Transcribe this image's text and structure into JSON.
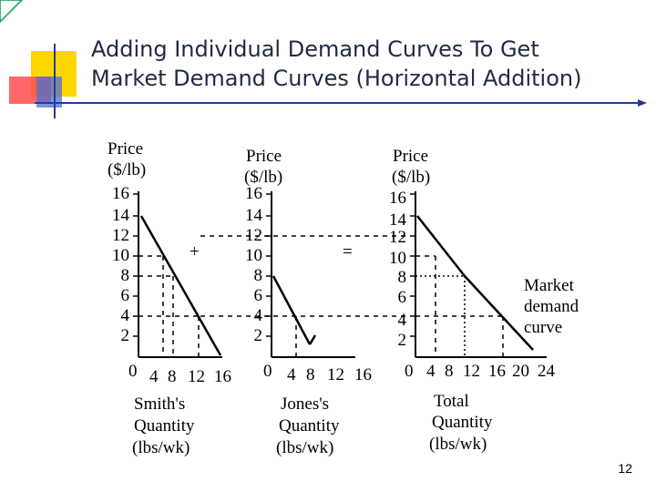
{
  "slide": {
    "title_line1": "Adding Individual Demand Curves To Get",
    "title_line2": "Market Demand Curves (Horizontal Addition)",
    "page_number": "12",
    "colors": {
      "accent_yellow": "#ffd700",
      "accent_red": "#ff3b3b",
      "accent_blue": "#1f3c9e",
      "corner_green": "#00a050"
    }
  },
  "operators": {
    "plus": "+",
    "equals": "="
  },
  "charts": [
    {
      "price_label_1": "Price",
      "price_label_2": "($/lb)",
      "y_ticks": [
        "16",
        "14",
        "12",
        "10",
        "8",
        "6",
        "4",
        "2"
      ],
      "x_ticks": [
        "0",
        "4",
        "8",
        "12",
        "16"
      ],
      "x_label_1": "Smith's",
      "x_label_2": "Quantity",
      "x_label_3": "(lbs/wk)"
    },
    {
      "price_label_1": "Price",
      "price_label_2": "($/lb)",
      "y_ticks": [
        "16",
        "14",
        "12",
        "10",
        "8",
        "6",
        "4",
        "2"
      ],
      "x_ticks": [
        "0",
        "4",
        "8",
        "12",
        "16"
      ],
      "x_label_1": "Jones's",
      "x_label_2": "Quantity",
      "x_label_3": "(lbs/wk)"
    },
    {
      "price_label_1": "Price",
      "price_label_2": "($/lb)",
      "y_ticks": [
        "16",
        "14",
        "12",
        "10",
        "8",
        "6",
        "4",
        "2"
      ],
      "x_ticks": [
        "0",
        "4",
        "8",
        "12",
        "16",
        "20",
        "24"
      ],
      "x_label_1": "Total",
      "x_label_2": "Quantity",
      "x_label_3": "(lbs/wk)",
      "curve_label_1": "Market",
      "curve_label_2": "demand",
      "curve_label_3": "curve"
    }
  ]
}
